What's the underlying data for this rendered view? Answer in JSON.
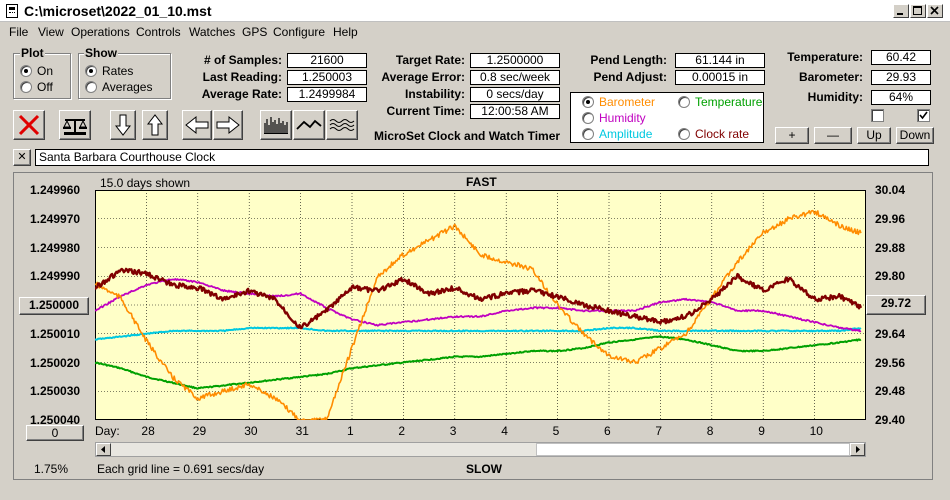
{
  "window": {
    "title": "C:\\microset\\2022_01_10.mst"
  },
  "menu": [
    "File",
    "View",
    "Operations",
    "Controls",
    "Watches",
    "GPS",
    "Configure",
    "Help"
  ],
  "plot_group": {
    "title": "Plot",
    "options": [
      "On",
      "Off"
    ],
    "selected": 0
  },
  "show_group": {
    "title": "Show",
    "options": [
      "Rates",
      "Averages"
    ],
    "selected": 0
  },
  "stats": [
    {
      "label": "# of Samples:",
      "value": "21600"
    },
    {
      "label": "Last Reading:",
      "value": "1.250003"
    },
    {
      "label": "Average Rate:",
      "value": "1.2499984"
    }
  ],
  "rates": [
    {
      "label": "Target Rate:",
      "value": "1.2500000"
    },
    {
      "label": "Average Error:",
      "value": "0.8 sec/week"
    },
    {
      "label": "Instability:",
      "value": "0 secs/day"
    },
    {
      "label": "Current Time:",
      "value": "12:00:58 AM"
    }
  ],
  "pend": [
    {
      "label": "Pend Length:",
      "value": "61.144 in"
    },
    {
      "label": "Pend Adjust:",
      "value": "0.00015 in"
    }
  ],
  "environment": [
    {
      "label": "Temperature:",
      "value": "60.42"
    },
    {
      "label": "Barometer:",
      "value": "29.93"
    },
    {
      "label": "Humidity:",
      "value": "64%"
    }
  ],
  "app_caption": "MicroSet Clock and Watch Timer",
  "series_select": {
    "options": [
      {
        "label": "Barometer",
        "color": "#ff8c00"
      },
      {
        "label": "Temperature",
        "color": "#00a000"
      },
      {
        "label": "Humidity",
        "color": "#c000c0"
      },
      {
        "label": "Amplitude",
        "color": "#00c8e0"
      },
      {
        "label": "Clock rate",
        "color": "#800000"
      }
    ],
    "selected": 0
  },
  "checkboxes": [
    {
      "checked": false
    },
    {
      "checked": true
    }
  ],
  "scale_buttons": [
    "+",
    "—",
    "Up",
    "Down"
  ],
  "clock_name": "Santa Barbara Courthouse Clock",
  "close_glyph": "✕",
  "chart": {
    "days_shown": "15.0 days shown",
    "fast_label": "FAST",
    "slow_label": "SLOW",
    "left_ticks": [
      "1.249960",
      "1.249970",
      "1.249980",
      "1.249990",
      "1.250000",
      "1.250010",
      "1.250020",
      "1.250030",
      "1.250040"
    ],
    "right_ticks": [
      "30.04",
      "29.96",
      "29.88",
      "29.80",
      "29.72",
      "29.64",
      "29.56",
      "29.48",
      "29.40"
    ],
    "left_center_box": "1.250000",
    "right_center_box": "29.72",
    "zero_box": "0",
    "day_label": "Day:",
    "day_ticks": [
      "28",
      "29",
      "30",
      "31",
      "1",
      "2",
      "3",
      "4",
      "5",
      "6",
      "7",
      "8",
      "9",
      "10"
    ],
    "grid_note": "Each grid line = 0.691 secs/day",
    "percent": "1.75%"
  },
  "chart_data": {
    "type": "line",
    "xlabel": "Day:",
    "x_range": [
      27.0,
      42.0
    ],
    "x_ticks": [
      "28",
      "29",
      "30",
      "31",
      "1",
      "2",
      "3",
      "4",
      "5",
      "6",
      "7",
      "8",
      "9",
      "10"
    ],
    "y_left_range": [
      1.24996,
      1.25004
    ],
    "y_left_inverted": true,
    "y_right_range": [
      29.4,
      30.04
    ],
    "grid": true,
    "series": [
      {
        "name": "Barometer",
        "axis": "right",
        "color": "#ff8c00",
        "x": [
          27.0,
          27.5,
          28.0,
          28.5,
          29.0,
          29.5,
          30.0,
          30.5,
          31.0,
          31.5,
          32.0,
          32.5,
          33.0,
          33.5,
          34.0,
          34.5,
          35.0,
          35.5,
          36.0,
          36.5,
          37.0,
          37.5,
          38.0,
          38.5,
          39.0,
          39.5,
          40.0,
          40.5,
          41.0,
          41.5,
          41.9
        ],
        "y": [
          29.78,
          29.74,
          29.62,
          29.52,
          29.46,
          29.48,
          29.5,
          29.46,
          29.4,
          29.4,
          29.6,
          29.8,
          29.86,
          29.9,
          29.94,
          29.86,
          29.84,
          29.82,
          29.72,
          29.64,
          29.58,
          29.56,
          29.6,
          29.64,
          29.74,
          29.84,
          29.92,
          29.96,
          29.98,
          29.94,
          29.92
        ]
      },
      {
        "name": "Temperature",
        "axis": "left",
        "color": "#00a000",
        "x": [
          27.0,
          27.5,
          28.0,
          28.5,
          29.0,
          29.5,
          30.0,
          30.5,
          31.0,
          31.5,
          32.0,
          32.5,
          33.0,
          33.5,
          34.0,
          34.5,
          35.0,
          35.5,
          36.0,
          36.5,
          37.0,
          37.5,
          38.0,
          38.5,
          39.0,
          39.5,
          40.0,
          40.5,
          41.0,
          41.5,
          41.9
        ],
        "y": [
          1.25002,
          1.250022,
          1.250025,
          1.250027,
          1.250029,
          1.250028,
          1.250027,
          1.250026,
          1.250025,
          1.250024,
          1.250022,
          1.250021,
          1.25002,
          1.250019,
          1.250018,
          1.250018,
          1.250017,
          1.250016,
          1.250016,
          1.250015,
          1.250013,
          1.250012,
          1.250011,
          1.250012,
          1.250014,
          1.250016,
          1.250016,
          1.250015,
          1.250014,
          1.250013,
          1.250012
        ]
      },
      {
        "name": "Humidity",
        "axis": "left",
        "color": "#c000c0",
        "x": [
          27.0,
          27.5,
          28.0,
          28.5,
          29.0,
          29.5,
          30.0,
          30.5,
          31.0,
          31.5,
          32.0,
          32.5,
          33.0,
          33.5,
          34.0,
          34.5,
          35.0,
          35.5,
          36.0,
          36.5,
          37.0,
          37.5,
          38.0,
          38.5,
          39.0,
          39.5,
          40.0,
          40.5,
          41.0,
          41.5,
          41.9
        ],
        "y": [
          1.250002,
          1.249997,
          1.249993,
          1.249991,
          1.249992,
          1.249995,
          1.249996,
          1.249997,
          1.249996,
          1.250001,
          1.250005,
          1.250007,
          1.250006,
          1.250005,
          1.250004,
          1.250004,
          1.250002,
          1.250001,
          1.250001,
          1.250002,
          1.250002,
          1.250002,
          1.249999,
          1.249998,
          1.249999,
          1.250002,
          1.250002,
          1.250004,
          1.250006,
          1.250008,
          1.250009
        ]
      },
      {
        "name": "Amplitude",
        "axis": "left",
        "color": "#00c8e0",
        "x": [
          27.0,
          27.5,
          28.0,
          28.5,
          29.0,
          29.5,
          30.0,
          30.5,
          31.0,
          31.5,
          32.0,
          32.5,
          33.0,
          33.5,
          34.0,
          34.5,
          35.0,
          35.5,
          36.0,
          36.5,
          37.0,
          37.5,
          38.0,
          38.5,
          39.0,
          39.5,
          40.0,
          40.5,
          41.0,
          41.5,
          41.9
        ],
        "y": [
          1.250012,
          1.250011,
          1.25001,
          1.250009,
          1.250009,
          1.250009,
          1.250008,
          1.250008,
          1.250008,
          1.250009,
          1.250009,
          1.250009,
          1.250009,
          1.250009,
          1.250009,
          1.250009,
          1.250009,
          1.250009,
          1.250009,
          1.250009,
          1.250008,
          1.250008,
          1.250009,
          1.250009,
          1.250009,
          1.250009,
          1.250009,
          1.250009,
          1.250009,
          1.250009,
          1.250008
        ]
      },
      {
        "name": "Clock rate",
        "axis": "left",
        "color": "#800000",
        "x": [
          27.0,
          27.5,
          28.0,
          28.5,
          29.0,
          29.5,
          30.0,
          30.5,
          31.0,
          31.5,
          32.0,
          32.5,
          33.0,
          33.5,
          34.0,
          34.5,
          35.0,
          35.5,
          36.0,
          36.5,
          37.0,
          37.5,
          38.0,
          38.5,
          39.0,
          39.5,
          40.0,
          40.5,
          41.0,
          41.5,
          41.9
        ],
        "y": [
          1.249994,
          1.249988,
          1.249989,
          1.249993,
          1.249994,
          1.249998,
          1.249995,
          1.249998,
          1.250008,
          1.250002,
          1.249994,
          1.249995,
          1.249991,
          1.249996,
          1.249994,
          1.249998,
          1.249996,
          1.249995,
          1.249997,
          1.25,
          1.250002,
          1.250004,
          1.250006,
          1.250004,
          1.249998,
          1.24999,
          1.249995,
          1.249991,
          1.249998,
          1.249997,
          1.250001
        ]
      }
    ]
  }
}
